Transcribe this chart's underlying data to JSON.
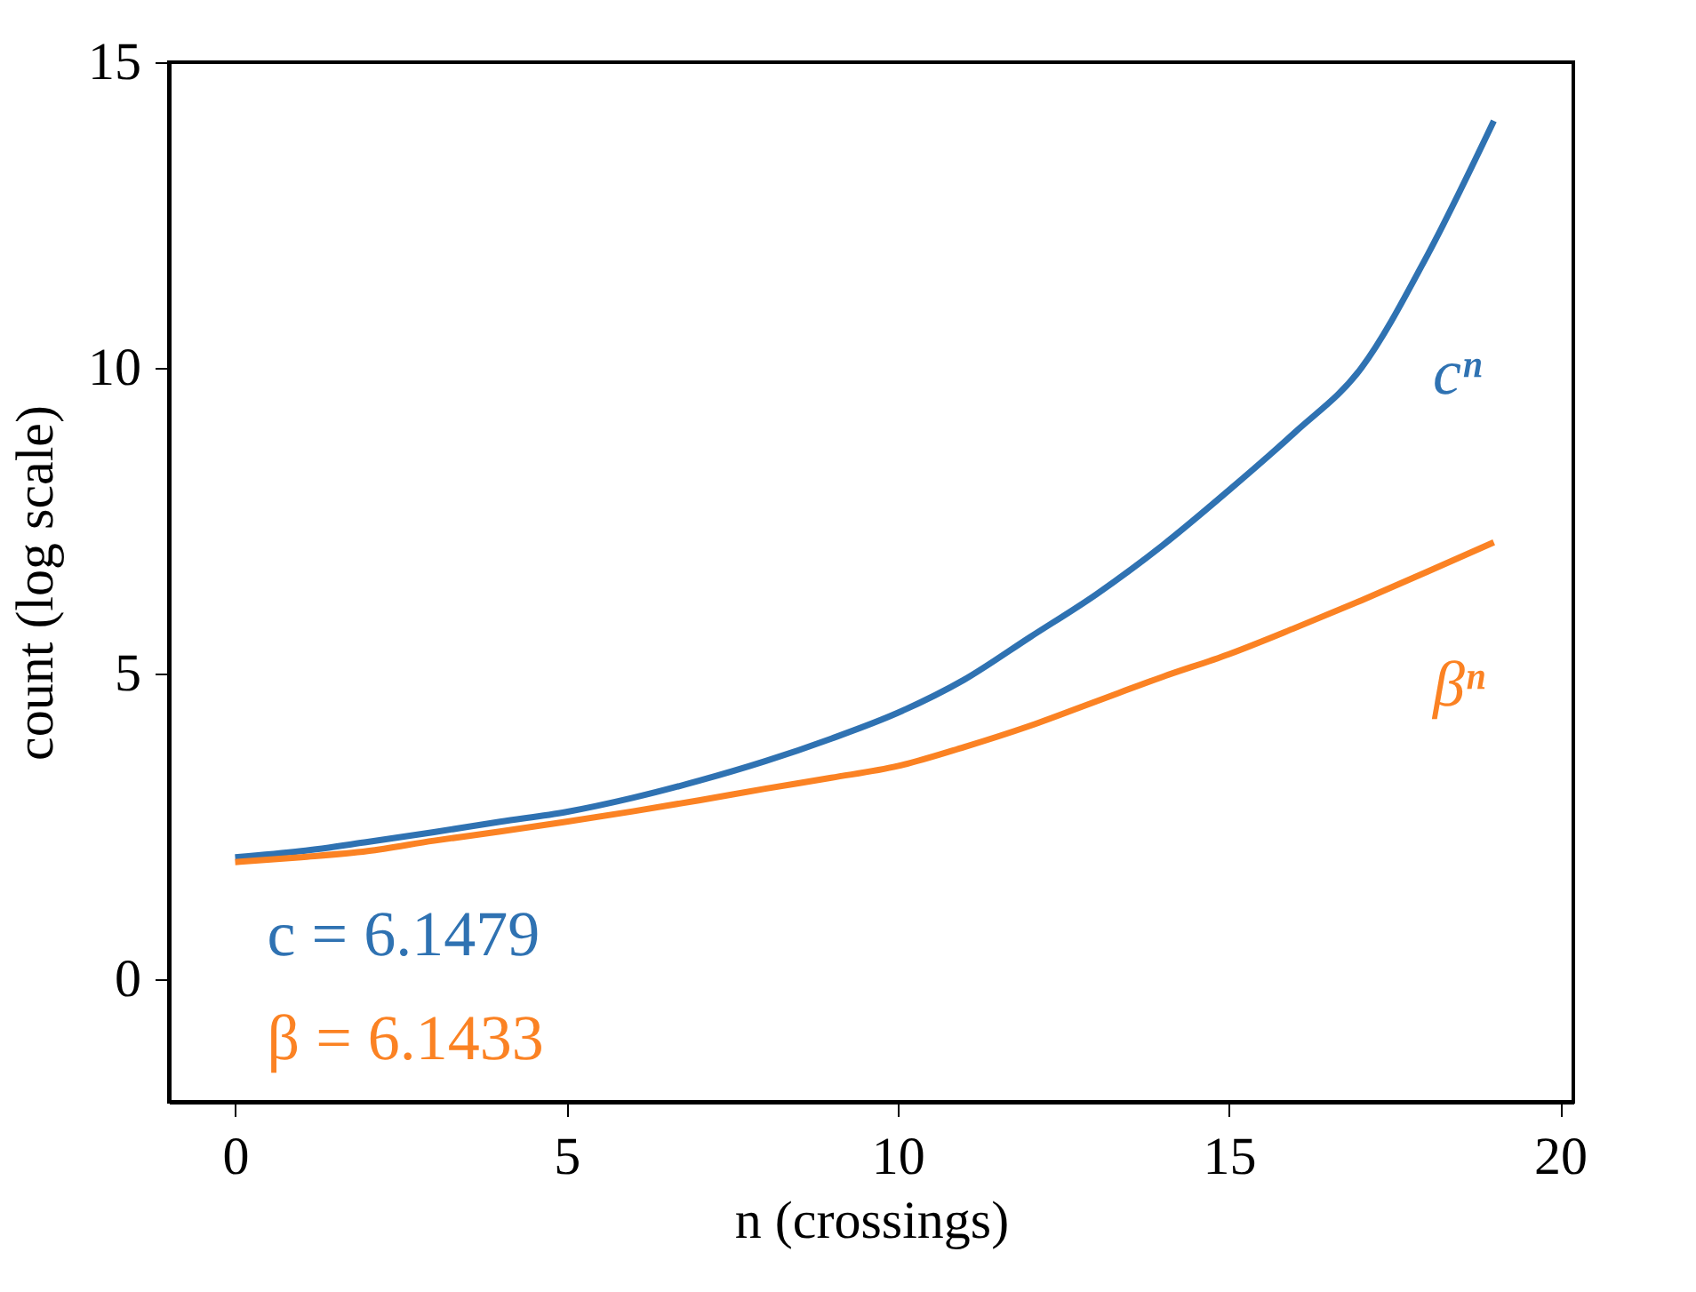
{
  "chart_data": {
    "type": "line",
    "xlabel": "n (crossings)",
    "ylabel": "count (log scale)",
    "x": [
      0,
      1,
      2,
      3,
      4,
      5,
      6,
      7,
      8,
      9,
      10,
      11,
      12,
      13,
      14,
      15,
      16,
      17,
      18,
      19
    ],
    "series": [
      {
        "color": "#2f72b2",
        "values": [
          2.0,
          2.1,
          2.25,
          2.41,
          2.58,
          2.74,
          2.97,
          3.25,
          3.57,
          3.94,
          4.36,
          4.9,
          5.6,
          6.3,
          7.1,
          8.0,
          8.95,
          10.0,
          11.85,
          14.04
        ]
      },
      {
        "color": "#fb8223",
        "values": [
          1.92,
          2.0,
          2.1,
          2.27,
          2.42,
          2.58,
          2.75,
          2.93,
          3.12,
          3.3,
          3.49,
          3.8,
          4.15,
          4.55,
          4.95,
          5.32,
          5.75,
          6.2,
          6.67,
          7.15
        ]
      }
    ],
    "annotations": [
      "cⁿ",
      "βⁿ",
      "c = 6.1479",
      "β = 6.1433"
    ],
    "xlim": [
      -1,
      20.2
    ],
    "ylim": [
      -2,
      15
    ],
    "xticks": [
      0,
      5,
      10,
      15,
      20
    ],
    "yticks": [
      0,
      5,
      10,
      15
    ],
    "grid": false,
    "legend": false
  }
}
